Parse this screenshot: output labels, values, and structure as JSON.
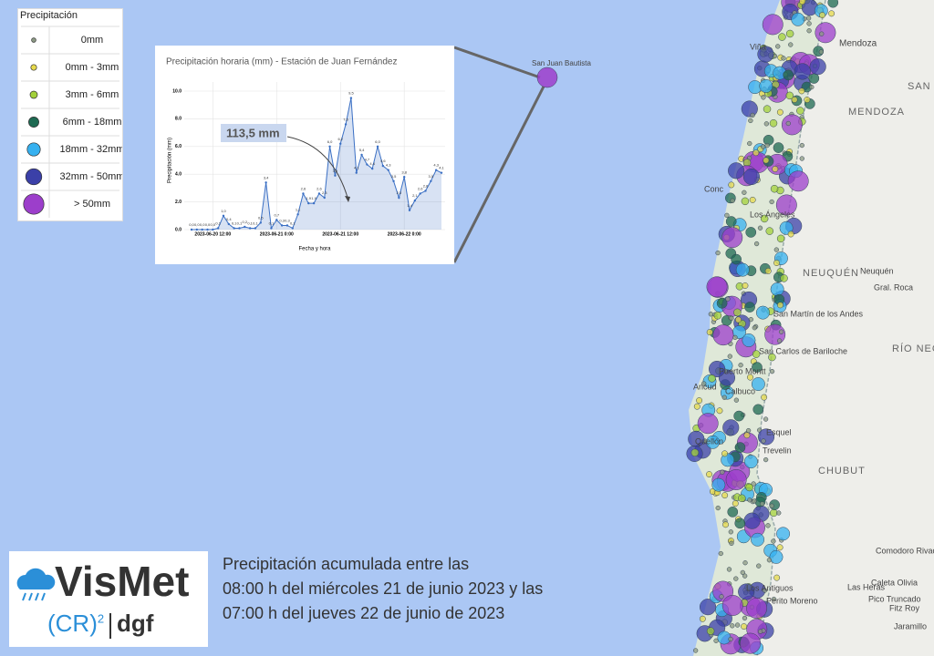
{
  "legend": {
    "title": "Precipitación",
    "items": [
      {
        "label": "0mm",
        "color": "#8c9a84"
      },
      {
        "label": "0mm - 3mm",
        "color": "#e6d94c"
      },
      {
        "label": "3mm - 6mm",
        "color": "#a3d13a"
      },
      {
        "label": "6mm - 18mm",
        "color": "#1e6a52"
      },
      {
        "label": "18mm - 32mm",
        "color": "#36b1f0"
      },
      {
        "label": "32mm - 50mm",
        "color": "#3b40a8"
      },
      {
        "label": "> 50mm",
        "color": "#9c3ecb"
      }
    ]
  },
  "chart_data": {
    "type": "line",
    "title": "Precipitación horaria (mm) - Estación de Juan Fernández",
    "x_label": "Fecha y hora",
    "y_label": "Precipitación (mm)",
    "annotation": "113,5 mm",
    "color": "#3a6fc4",
    "categories": [
      null,
      null,
      null,
      null,
      "2023-06-20 12:00",
      null,
      null,
      null,
      null,
      null,
      null,
      null,
      null,
      null,
      null,
      null,
      "2023-06-21 0:00",
      null,
      null,
      null,
      null,
      null,
      null,
      null,
      null,
      null,
      null,
      null,
      "2023-06-21 12:00",
      null,
      null,
      null,
      null,
      null,
      null,
      null,
      null,
      null,
      null,
      null,
      "2023-06-22 0:00",
      null,
      null,
      null,
      null,
      null,
      null,
      null
    ],
    "values": [
      0,
      0,
      0,
      0,
      0,
      0.1,
      1.0,
      0.4,
      0.1,
      0.1,
      0.2,
      0.1,
      0.1,
      0.5,
      3.4,
      0.1,
      0.7,
      0.3,
      0.3,
      0.1,
      1.1,
      2.6,
      1.9,
      1.9,
      2.6,
      2.3,
      6.0,
      3.9,
      6.2,
      7.6,
      9.5,
      4.1,
      5.4,
      4.7,
      4.4,
      6.0,
      4.6,
      4.3,
      3.5,
      2.3,
      3.8,
      1.4,
      2.1,
      2.6,
      2.8,
      3.5,
      4.3,
      4.1
    ],
    "value_labels": [
      "0,0",
      "0,0",
      "0,0",
      "0,0",
      "0,0",
      "0,1",
      "1,0",
      "0,4",
      "0,1",
      "0,1",
      "0,2",
      "0,1",
      "0,1",
      "0,5",
      "3,4",
      "0,1",
      "0,7",
      "0,3",
      "0,3",
      "0,1",
      "1,1",
      "2,6",
      "1,9",
      "1,9",
      "2,6",
      "2,3",
      "6,0",
      "3,9",
      "6,2",
      "7,6",
      "9,5",
      "4,1",
      "5,4",
      "4,7",
      "4,4",
      "6,0",
      "4,6",
      "4,3",
      "3,5",
      "2,3",
      "3,8",
      "1,4",
      "2,1",
      "2,6",
      "2,8",
      "3,5",
      "4,3",
      "4,1"
    ],
    "ylim": [
      0,
      10
    ],
    "yticks": [
      {
        "value": 0,
        "label": "0.0"
      },
      {
        "value": 2,
        "label": "2.0"
      },
      {
        "value": 4,
        "label": "4.0"
      },
      {
        "value": 6,
        "label": "6.0"
      },
      {
        "value": 8,
        "label": "8.0"
      },
      {
        "value": 10,
        "label": "10.0"
      }
    ],
    "grid": true
  },
  "map_labels": [
    "San Juan Bautista",
    "Mendoza",
    "SAN",
    "MENDOZA",
    "Viña",
    "Conc",
    "Los Ángeles",
    "NEUQUÉN",
    "Neuquén",
    "Gral. Roca",
    "San Martín de los Andes",
    "RÍO NEG",
    "San Carlos de Bariloche",
    "Puerto Montt",
    "Ancud",
    "Calbuco",
    "Quellón",
    "Esquel",
    "Trevelin",
    "CHUBUT",
    "Comodoro Rivadavia",
    "Las Heras",
    "Caleta Olivia",
    "Pico Truncado",
    "Fitz Roy",
    "Los Antiguos",
    "Perito Moreno",
    "Jaramillo"
  ],
  "caption": [
    "Precipitación acumulada entre las",
    "08:00 h del miércoles 21 de junio 2023 y las",
    "07:00 h del jueves 22 de junio de 2023"
  ],
  "logo": {
    "name": "VisMet",
    "org": "(CR)",
    "sup": "2",
    "dept": "dgf"
  }
}
